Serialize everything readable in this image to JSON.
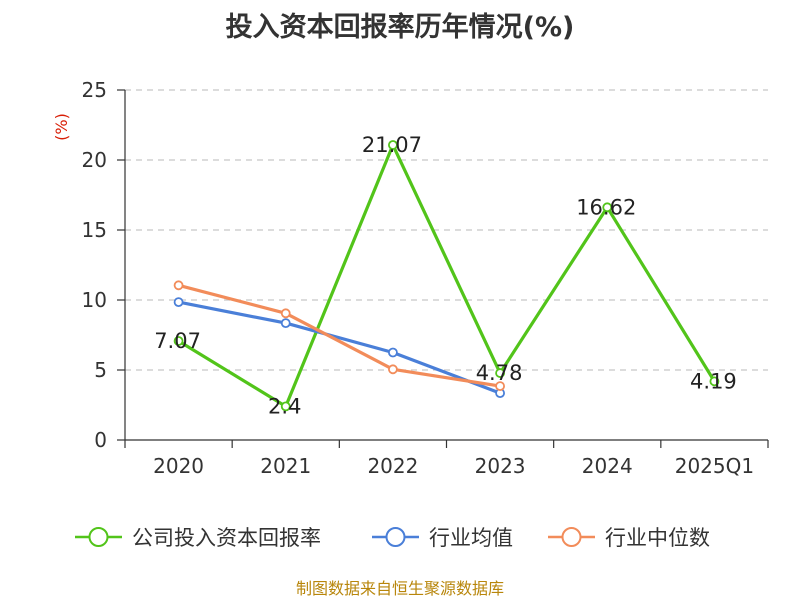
{
  "chart_data": {
    "type": "line",
    "title": "投入资本回报率历年情况(%)",
    "ylabel": "(%)",
    "xlabel": "",
    "categories": [
      "2020",
      "2021",
      "2022",
      "2023",
      "2024",
      "2025Q1"
    ],
    "ylim": [
      0,
      25
    ],
    "yticks": [
      0,
      5,
      10,
      15,
      20,
      25
    ],
    "grid": true,
    "legend_position": "bottom",
    "series": [
      {
        "name": "公司投入资本回报率",
        "color": "#52c41a",
        "values": [
          7.07,
          2.4,
          21.07,
          4.78,
          16.62,
          4.19
        ],
        "labels": [
          "7.07",
          "2.4",
          "21.07",
          "4.78",
          "16.62",
          "4.19"
        ],
        "show_labels": true
      },
      {
        "name": "行业均值",
        "color": "#4a7fd8",
        "values": [
          9.85,
          8.35,
          6.25,
          3.35,
          null,
          null
        ],
        "show_labels": false
      },
      {
        "name": "行业中位数",
        "color": "#f28c5a",
        "values": [
          11.05,
          9.05,
          5.05,
          3.85,
          null,
          null
        ],
        "show_labels": false
      }
    ]
  },
  "footer": {
    "source": "制图数据来自恒生聚源数据库"
  }
}
